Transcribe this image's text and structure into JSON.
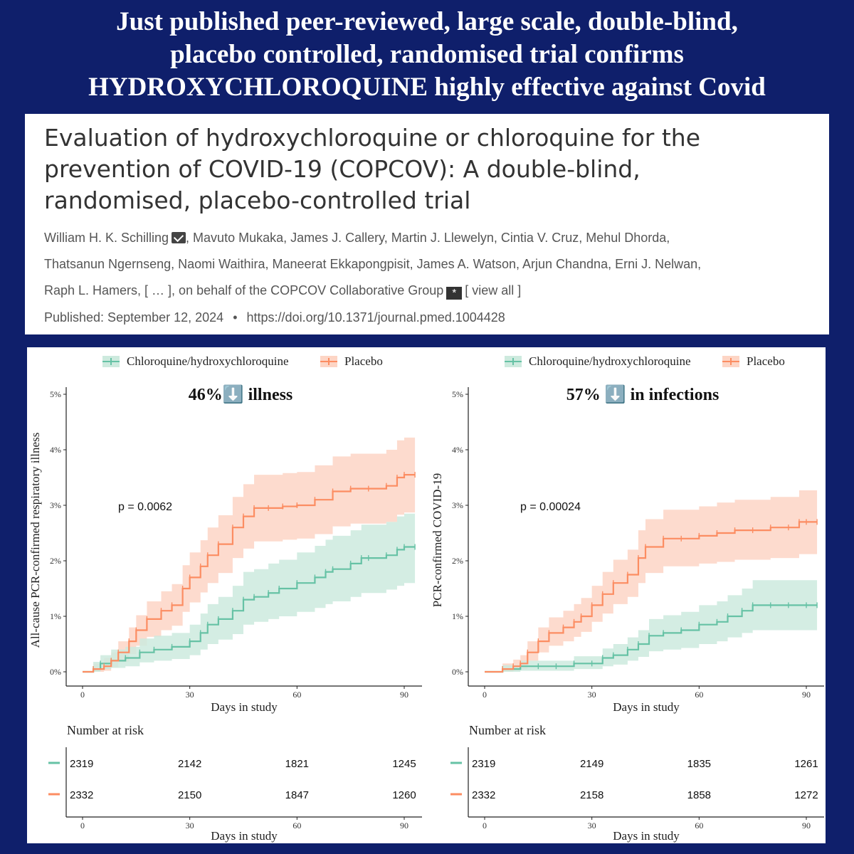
{
  "headline": {
    "line1": "Just published peer-reviewed, large scale, double-blind,",
    "line2": "placebo controlled, randomised trial confirms",
    "line3": "HYDROXYCHLOROQUINE highly effective against Covid"
  },
  "paper": {
    "title_line1": "Evaluation of hydroxychloroquine or chloroquine for the",
    "title_line2": "prevention of COVID-19 (COPCOV): A double-blind,",
    "title_line3": "randomised, placebo-controlled trial",
    "authors_line1_a": "William H. K. Schilling",
    "authors_line1_b": ", Mavuto Mukaka, James J. Callery, Martin J. Llewelyn, Cintia V. Cruz, Mehul Dhorda,",
    "authors_line2": "Thatsanun Ngernseng, Naomi Waithira, Maneerat Ekkapongpisit, James A. Watson, Arjun Chandna, Erni J. Nelwan,",
    "authors_line3_a": "Raph L. Hamers, [ … ], on behalf of the COPCOV Collaborative Group",
    "authors_line3_b": "[ view all ]",
    "group_icon_glyph": "*",
    "published": "Published: September 12, 2024",
    "bullet": "•",
    "doi": "https://doi.org/10.1371/journal.pmed.1004428"
  },
  "colors": {
    "background": "#0f1f6b",
    "chloroquine": "#66c2a5",
    "placebo": "#fc8d62",
    "chloroquine_band": "#cdeade",
    "placebo_band": "#fdd5c5"
  },
  "chart_data": [
    {
      "type": "line",
      "title": "46%⬇️ illness",
      "xlabel": "Days in study",
      "ylabel": "All-cause PCR-confirmed respiratory illness",
      "annotation": "p = 0.0062",
      "xlim": [
        0,
        93
      ],
      "ylim": [
        0,
        5
      ],
      "xticks": [
        "0",
        "30",
        "60",
        "90"
      ],
      "yticks": [
        "0%",
        "1%",
        "2%",
        "3%",
        "4%",
        "5%"
      ],
      "legend": [
        "Chloroquine/hydroxychloroquine",
        "Placebo"
      ],
      "legend_position": "top",
      "series": [
        {
          "name": "Chloroquine/hydroxychloroquine",
          "x": [
            0,
            3,
            5,
            8,
            12,
            16,
            20,
            25,
            30,
            33,
            35,
            38,
            42,
            45,
            48,
            52,
            55,
            60,
            65,
            68,
            70,
            75,
            78,
            80,
            85,
            88,
            90,
            93
          ],
          "y": [
            0,
            0.05,
            0.15,
            0.2,
            0.25,
            0.35,
            0.4,
            0.45,
            0.55,
            0.7,
            0.85,
            0.95,
            1.1,
            1.3,
            1.35,
            1.42,
            1.5,
            1.6,
            1.7,
            1.8,
            1.85,
            1.95,
            2.05,
            2.05,
            2.1,
            2.2,
            2.25,
            2.25
          ],
          "lower": [
            0,
            0,
            0.05,
            0.07,
            0.1,
            0.17,
            0.2,
            0.23,
            0.3,
            0.4,
            0.5,
            0.58,
            0.68,
            0.85,
            0.9,
            0.95,
            1.0,
            1.08,
            1.15,
            1.22,
            1.27,
            1.35,
            1.42,
            1.42,
            1.48,
            1.55,
            1.6,
            1.6
          ],
          "upper": [
            0,
            0.18,
            0.3,
            0.4,
            0.45,
            0.6,
            0.65,
            0.7,
            0.85,
            1.05,
            1.22,
            1.35,
            1.55,
            1.8,
            1.85,
            1.95,
            2.02,
            2.15,
            2.27,
            2.38,
            2.45,
            2.55,
            2.65,
            2.65,
            2.7,
            2.8,
            2.85,
            2.85
          ]
        },
        {
          "name": "Placebo",
          "x": [
            0,
            3,
            6,
            8,
            10,
            13,
            15,
            18,
            22,
            25,
            28,
            30,
            33,
            35,
            38,
            42,
            45,
            48,
            52,
            56,
            60,
            65,
            70,
            75,
            80,
            85,
            88,
            90,
            93
          ],
          "y": [
            0,
            0.05,
            0.1,
            0.2,
            0.35,
            0.55,
            0.75,
            0.95,
            1.1,
            1.2,
            1.5,
            1.7,
            1.9,
            2.1,
            2.3,
            2.6,
            2.8,
            2.95,
            2.95,
            2.98,
            3.0,
            3.1,
            3.25,
            3.3,
            3.3,
            3.35,
            3.5,
            3.55,
            3.55
          ],
          "lower": [
            0,
            0,
            0.02,
            0.08,
            0.18,
            0.32,
            0.47,
            0.63,
            0.75,
            0.83,
            1.08,
            1.25,
            1.43,
            1.6,
            1.78,
            2.05,
            2.22,
            2.35,
            2.35,
            2.38,
            2.4,
            2.48,
            2.62,
            2.67,
            2.67,
            2.7,
            2.83,
            2.87,
            2.87
          ],
          "upper": [
            0,
            0.15,
            0.25,
            0.35,
            0.55,
            0.8,
            1.02,
            1.27,
            1.45,
            1.58,
            1.92,
            2.15,
            2.37,
            2.6,
            2.82,
            3.15,
            3.38,
            3.55,
            3.55,
            3.58,
            3.6,
            3.72,
            3.88,
            3.93,
            3.93,
            4.0,
            4.17,
            4.22,
            4.22
          ]
        }
      ],
      "risk_table": {
        "title": "Number at risk",
        "xlabel": "Days in study",
        "rows": [
          {
            "name": "Chloroquine/hydroxychloroquine",
            "values": [
              "2319",
              "2142",
              "1821",
              "1245"
            ]
          },
          {
            "name": "Placebo",
            "values": [
              "2332",
              "2150",
              "1847",
              "1260"
            ]
          }
        ]
      }
    },
    {
      "type": "line",
      "title": "57% ⬇️ in infections",
      "xlabel": "Days in study",
      "ylabel": "PCR-confirmed COVID-19",
      "annotation": "p = 0.00024",
      "xlim": [
        0,
        93
      ],
      "ylim": [
        0,
        5
      ],
      "xticks": [
        "0",
        "30",
        "60",
        "90"
      ],
      "yticks": [
        "0%",
        "1%",
        "2%",
        "3%",
        "4%",
        "5%"
      ],
      "legend": [
        "Chloroquine/hydroxychloroquine",
        "Placebo"
      ],
      "legend_position": "top",
      "series": [
        {
          "name": "Chloroquine/hydroxychloroquine",
          "x": [
            0,
            5,
            10,
            15,
            20,
            25,
            30,
            33,
            36,
            40,
            43,
            46,
            50,
            55,
            60,
            65,
            68,
            72,
            75,
            80,
            85,
            90,
            93
          ],
          "y": [
            0,
            0.05,
            0.1,
            0.1,
            0.1,
            0.15,
            0.15,
            0.25,
            0.3,
            0.4,
            0.5,
            0.65,
            0.7,
            0.75,
            0.85,
            0.9,
            1.0,
            1.1,
            1.2,
            1.2,
            1.2,
            1.2,
            1.2
          ],
          "lower": [
            0,
            0,
            0.02,
            0.02,
            0.02,
            0.05,
            0.05,
            0.1,
            0.13,
            0.2,
            0.27,
            0.37,
            0.4,
            0.43,
            0.5,
            0.55,
            0.62,
            0.7,
            0.75,
            0.75,
            0.75,
            0.75,
            0.75
          ],
          "upper": [
            0,
            0.12,
            0.2,
            0.2,
            0.2,
            0.28,
            0.28,
            0.42,
            0.5,
            0.62,
            0.75,
            0.95,
            1.02,
            1.08,
            1.2,
            1.27,
            1.38,
            1.5,
            1.65,
            1.65,
            1.65,
            1.65,
            1.65
          ]
        },
        {
          "name": "Placebo",
          "x": [
            0,
            5,
            8,
            10,
            12,
            15,
            18,
            22,
            25,
            27,
            30,
            33,
            36,
            40,
            43,
            45,
            50,
            55,
            60,
            65,
            70,
            75,
            80,
            85,
            88,
            90,
            93
          ],
          "y": [
            0,
            0.05,
            0.1,
            0.15,
            0.35,
            0.55,
            0.7,
            0.8,
            0.9,
            1.0,
            1.2,
            1.4,
            1.6,
            1.75,
            2.05,
            2.25,
            2.4,
            2.4,
            2.45,
            2.5,
            2.55,
            2.55,
            2.6,
            2.6,
            2.7,
            2.7,
            2.7
          ],
          "lower": [
            0,
            0,
            0.02,
            0.05,
            0.2,
            0.35,
            0.47,
            0.55,
            0.63,
            0.72,
            0.9,
            1.05,
            1.22,
            1.35,
            1.6,
            1.78,
            1.9,
            1.9,
            1.95,
            1.98,
            2.02,
            2.02,
            2.05,
            2.05,
            2.12,
            2.12,
            2.12
          ],
          "upper": [
            0,
            0.15,
            0.22,
            0.3,
            0.55,
            0.8,
            0.98,
            1.1,
            1.22,
            1.33,
            1.55,
            1.8,
            2.02,
            2.2,
            2.55,
            2.75,
            2.92,
            2.92,
            2.98,
            3.05,
            3.1,
            3.1,
            3.15,
            3.15,
            3.27,
            3.27,
            3.27
          ]
        }
      ],
      "risk_table": {
        "title": "Number at risk",
        "xlabel": "Days in study",
        "rows": [
          {
            "name": "Chloroquine/hydroxychloroquine",
            "values": [
              "2319",
              "2149",
              "1835",
              "1261"
            ]
          },
          {
            "name": "Placebo",
            "values": [
              "2332",
              "2158",
              "1858",
              "1272"
            ]
          }
        ]
      }
    }
  ]
}
